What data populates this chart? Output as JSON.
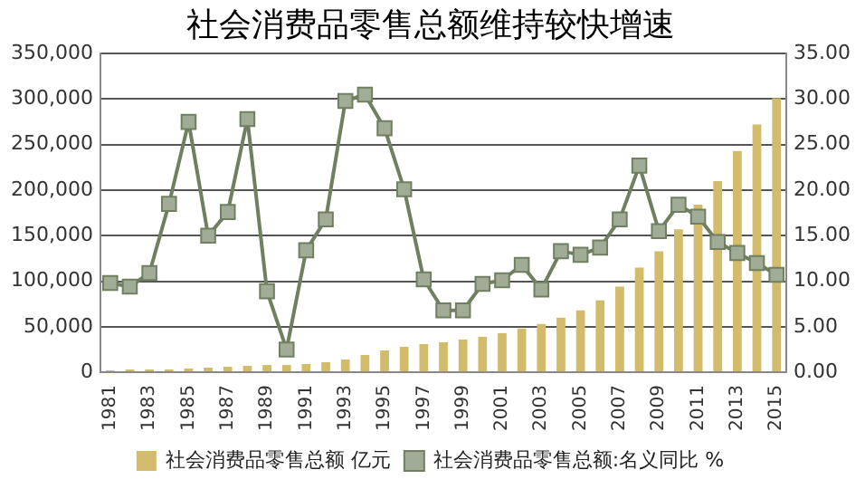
{
  "chart_data": {
    "type": "bar",
    "title": "社会消费品零售总额维持较快增速",
    "categories": [
      "1981",
      null,
      "1983",
      null,
      "1985",
      null,
      "1987",
      null,
      "1989",
      null,
      "1991",
      null,
      "1993",
      null,
      "1995",
      null,
      "1997",
      null,
      "1999",
      null,
      "2001",
      null,
      "2003",
      null,
      "2005",
      null,
      "2007",
      null,
      "2009",
      null,
      "2011",
      null,
      "2013",
      null,
      "2015"
    ],
    "series": [
      {
        "name": "社会消费品零售总额 亿元",
        "color": "#d2bb6b",
        "values": [
          2000,
          3000,
          3000,
          3000,
          4000,
          5000,
          6000,
          7000,
          8000,
          8000,
          9000,
          11000,
          14000,
          19000,
          24000,
          28000,
          31000,
          33000,
          36000,
          39000,
          43000,
          48000,
          53000,
          60000,
          68000,
          79000,
          94000,
          115000,
          133000,
          157000,
          184000,
          210000,
          243000,
          272000,
          301000
        ]
      },
      {
        "name": "社会消费品零售总额:名义同比 %",
        "type": "line",
        "axis": "y2",
        "color": "#6f7f5f",
        "values": [
          9.8,
          9.4,
          10.9,
          18.5,
          27.5,
          15.0,
          17.6,
          27.8,
          8.9,
          2.5,
          13.4,
          16.8,
          29.8,
          30.5,
          26.8,
          20.1,
          10.2,
          6.8,
          6.8,
          9.7,
          10.1,
          11.8,
          9.1,
          13.3,
          12.9,
          13.7,
          16.8,
          22.7,
          15.5,
          18.4,
          17.1,
          14.3,
          13.1,
          12.0,
          10.7
        ]
      }
    ],
    "ylim": [
      0,
      350000
    ],
    "yticks": [
      {
        "value": 0,
        "label": "0"
      },
      {
        "value": 50000,
        "label": "50,000"
      },
      {
        "value": 100000,
        "label": "100,000"
      },
      {
        "value": 150000,
        "label": "150,000"
      },
      {
        "value": 200000,
        "label": "200,000"
      },
      {
        "value": 250000,
        "label": "250,000"
      },
      {
        "value": 300000,
        "label": "300,000"
      },
      {
        "value": 350000,
        "label": "350,000"
      }
    ],
    "y2lim": [
      0,
      35
    ],
    "y2ticks": [
      {
        "value": 0,
        "label": "0.00"
      },
      {
        "value": 5,
        "label": "5.00"
      },
      {
        "value": 10,
        "label": "10.00"
      },
      {
        "value": 15,
        "label": "15.00"
      },
      {
        "value": 20,
        "label": "20.00"
      },
      {
        "value": 25,
        "label": "25.00"
      },
      {
        "value": 30,
        "label": "30.00"
      },
      {
        "value": 35,
        "label": "35.00"
      }
    ],
    "grid": "y",
    "legend": "bottom",
    "marker": "square",
    "line_style": "solid"
  }
}
